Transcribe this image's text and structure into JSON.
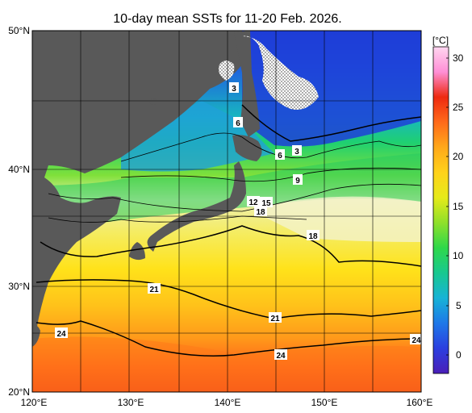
{
  "title": "10-day mean SSTs for 11-20 Feb. 2026.",
  "map": {
    "lon_ticks": [
      "120°E",
      "130°E",
      "140°E",
      "150°E",
      "160°E"
    ],
    "lat_ticks": [
      "50°N",
      "40°N",
      "30°N",
      "20°N"
    ],
    "land_color": "#595959",
    "grid_color": "#000000"
  },
  "colorbar": {
    "unit": "[°C]",
    "ticks": [
      "30",
      "25",
      "20",
      "15",
      "10",
      "5",
      "0"
    ],
    "colors": [
      "#4a1fb8",
      "#2b3fe0",
      "#1e78e8",
      "#17b3d6",
      "#18c890",
      "#2ed84a",
      "#8fe02a",
      "#e6ea1a",
      "#ffd21a",
      "#ffa81a",
      "#ff6a1a",
      "#ee2a10",
      "#ff8fd6",
      "#ffd6f0"
    ]
  },
  "isotherm_labels": [
    {
      "id": "3a",
      "text": "3"
    },
    {
      "id": "6a",
      "text": "6"
    },
    {
      "id": "6b",
      "text": "6"
    },
    {
      "id": "3b",
      "text": "3"
    },
    {
      "id": "9",
      "text": "9"
    },
    {
      "id": "12",
      "text": "12"
    },
    {
      "id": "15",
      "text": "15"
    },
    {
      "id": "18a",
      "text": "18"
    },
    {
      "id": "18b",
      "text": "18"
    },
    {
      "id": "21a",
      "text": "21"
    },
    {
      "id": "21b",
      "text": "21"
    },
    {
      "id": "24a",
      "text": "24"
    },
    {
      "id": "24b",
      "text": "24"
    },
    {
      "id": "24c",
      "text": "24"
    }
  ]
}
